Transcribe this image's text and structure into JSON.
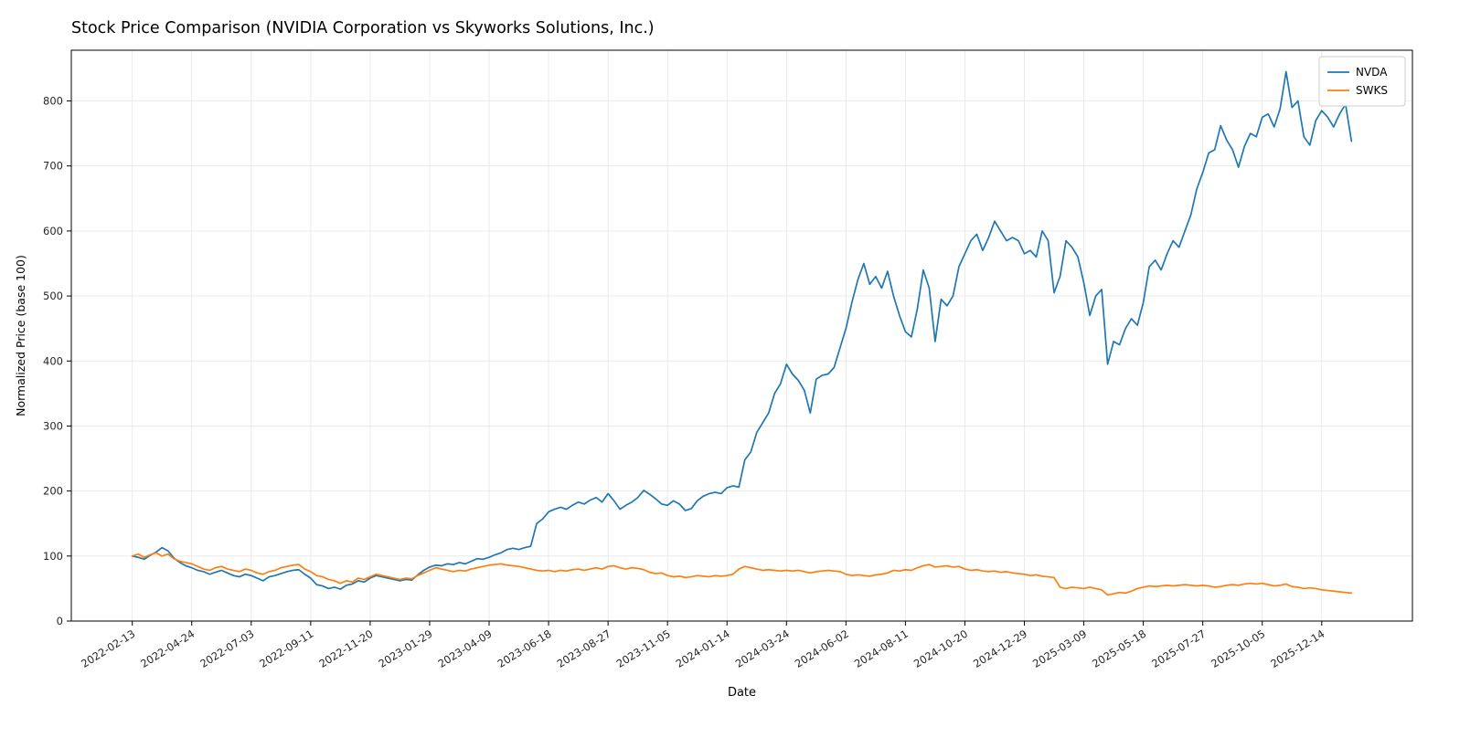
{
  "chart_data": {
    "type": "line",
    "title": "Stock Price Comparison (NVIDIA Corporation vs Skyworks Solutions, Inc.)",
    "xlabel": "Date",
    "ylabel": "Normalized Price (base 100)",
    "x_start_date": "2022-02-13",
    "x_interval_days": 7,
    "x_tick_indices": [
      0,
      10,
      20,
      30,
      40,
      50,
      60,
      70,
      80,
      90,
      100,
      110,
      120,
      130,
      140,
      150,
      160,
      170,
      180,
      190,
      200
    ],
    "x_tick_labels": [
      "2022-02-13",
      "2022-04-24",
      "2022-07-03",
      "2022-09-11",
      "2022-11-20",
      "2023-01-29",
      "2023-04-09",
      "2023-06-18",
      "2023-08-27",
      "2023-11-05",
      "2024-01-14",
      "2024-03-24",
      "2024-06-02",
      "2024-08-11",
      "2024-10-20",
      "2024-12-29",
      "2025-03-09",
      "2025-05-18",
      "2025-07-27",
      "2025-10-05",
      "2025-12-14"
    ],
    "y_ticks": [
      0,
      100,
      200,
      300,
      400,
      500,
      600,
      700,
      800
    ],
    "ylim": [
      0,
      878
    ],
    "grid": true,
    "legend_position": "upper right",
    "series": [
      {
        "name": "NVDA",
        "color": "#1f77b4",
        "values": [
          100,
          98,
          95,
          101,
          106,
          113,
          108,
          97,
          90,
          85,
          82,
          78,
          76,
          72,
          75,
          78,
          74,
          70,
          68,
          72,
          70,
          66,
          62,
          68,
          70,
          73,
          76,
          78,
          79,
          72,
          66,
          56,
          54,
          50,
          52,
          49,
          55,
          57,
          62,
          60,
          66,
          70,
          68,
          66,
          64,
          62,
          64,
          63,
          71,
          78,
          83,
          86,
          85,
          88,
          87,
          90,
          88,
          92,
          96,
          95,
          98,
          102,
          105,
          110,
          112,
          110,
          113,
          115,
          150,
          157,
          168,
          172,
          175,
          172,
          178,
          183,
          180,
          186,
          190,
          183,
          196,
          185,
          172,
          178,
          183,
          190,
          201,
          195,
          188,
          180,
          178,
          185,
          180,
          170,
          173,
          185,
          192,
          196,
          198,
          196,
          205,
          208,
          206,
          248,
          260,
          290,
          305,
          320,
          350,
          365,
          395,
          380,
          370,
          355,
          320,
          372,
          378,
          380,
          390,
          420,
          450,
          490,
          525,
          550,
          518,
          530,
          512,
          538,
          500,
          470,
          445,
          437,
          480,
          540,
          512,
          430,
          495,
          485,
          500,
          545,
          565,
          585,
          595,
          570,
          590,
          615,
          600,
          585,
          590,
          585,
          565,
          570,
          560,
          600,
          585,
          505,
          530,
          585,
          575,
          560,
          520,
          470,
          500,
          510,
          395,
          430,
          425,
          450,
          465,
          455,
          490,
          545,
          555,
          540,
          565,
          585,
          575,
          600,
          625,
          665,
          690,
          720,
          725,
          762,
          740,
          725,
          698,
          730,
          750,
          745,
          775,
          780,
          760,
          788,
          845,
          790,
          800,
          745,
          732,
          770,
          785,
          775,
          760,
          780,
          795,
          738
        ]
      },
      {
        "name": "SWKS",
        "color": "#ff7f0e",
        "values": [
          100,
          103,
          98,
          102,
          105,
          100,
          103,
          96,
          92,
          90,
          88,
          84,
          80,
          78,
          82,
          84,
          80,
          78,
          76,
          80,
          78,
          74,
          72,
          76,
          78,
          82,
          84,
          86,
          87,
          80,
          76,
          70,
          68,
          64,
          62,
          58,
          62,
          60,
          66,
          64,
          68,
          72,
          70,
          68,
          66,
          64,
          66,
          65,
          70,
          74,
          78,
          82,
          80,
          78,
          76,
          78,
          77,
          80,
          82,
          84,
          86,
          87,
          88,
          86,
          85,
          84,
          82,
          80,
          78,
          77,
          78,
          76,
          78,
          77,
          79,
          80,
          78,
          80,
          82,
          80,
          84,
          85,
          82,
          80,
          82,
          81,
          79,
          75,
          73,
          74,
          70,
          68,
          69,
          67,
          68,
          70,
          69,
          68,
          70,
          69,
          70,
          72,
          80,
          84,
          82,
          80,
          78,
          79,
          78,
          77,
          78,
          77,
          78,
          76,
          74,
          76,
          77,
          78,
          77,
          76,
          72,
          70,
          71,
          70,
          69,
          71,
          72,
          74,
          78,
          77,
          79,
          78,
          82,
          85,
          87,
          83,
          84,
          85,
          83,
          84,
          80,
          78,
          79,
          77,
          76,
          77,
          75,
          76,
          74,
          73,
          72,
          70,
          71,
          69,
          68,
          67,
          52,
          50,
          52,
          51,
          50,
          52,
          50,
          48,
          40,
          42,
          44,
          43,
          46,
          50,
          52,
          54,
          53,
          54,
          55,
          54,
          55,
          56,
          55,
          54,
          55,
          54,
          52,
          53,
          55,
          56,
          55,
          57,
          58,
          57,
          58,
          56,
          54,
          55,
          57,
          53,
          52,
          50,
          51,
          50,
          48,
          47,
          46,
          45,
          44,
          43
        ]
      }
    ],
    "style": {
      "grid_color": "#e8e8e8",
      "spine_color": "#000000",
      "tick_label_color": "#262626",
      "legend_border_color": "#cccccc",
      "background": "#ffffff"
    }
  }
}
